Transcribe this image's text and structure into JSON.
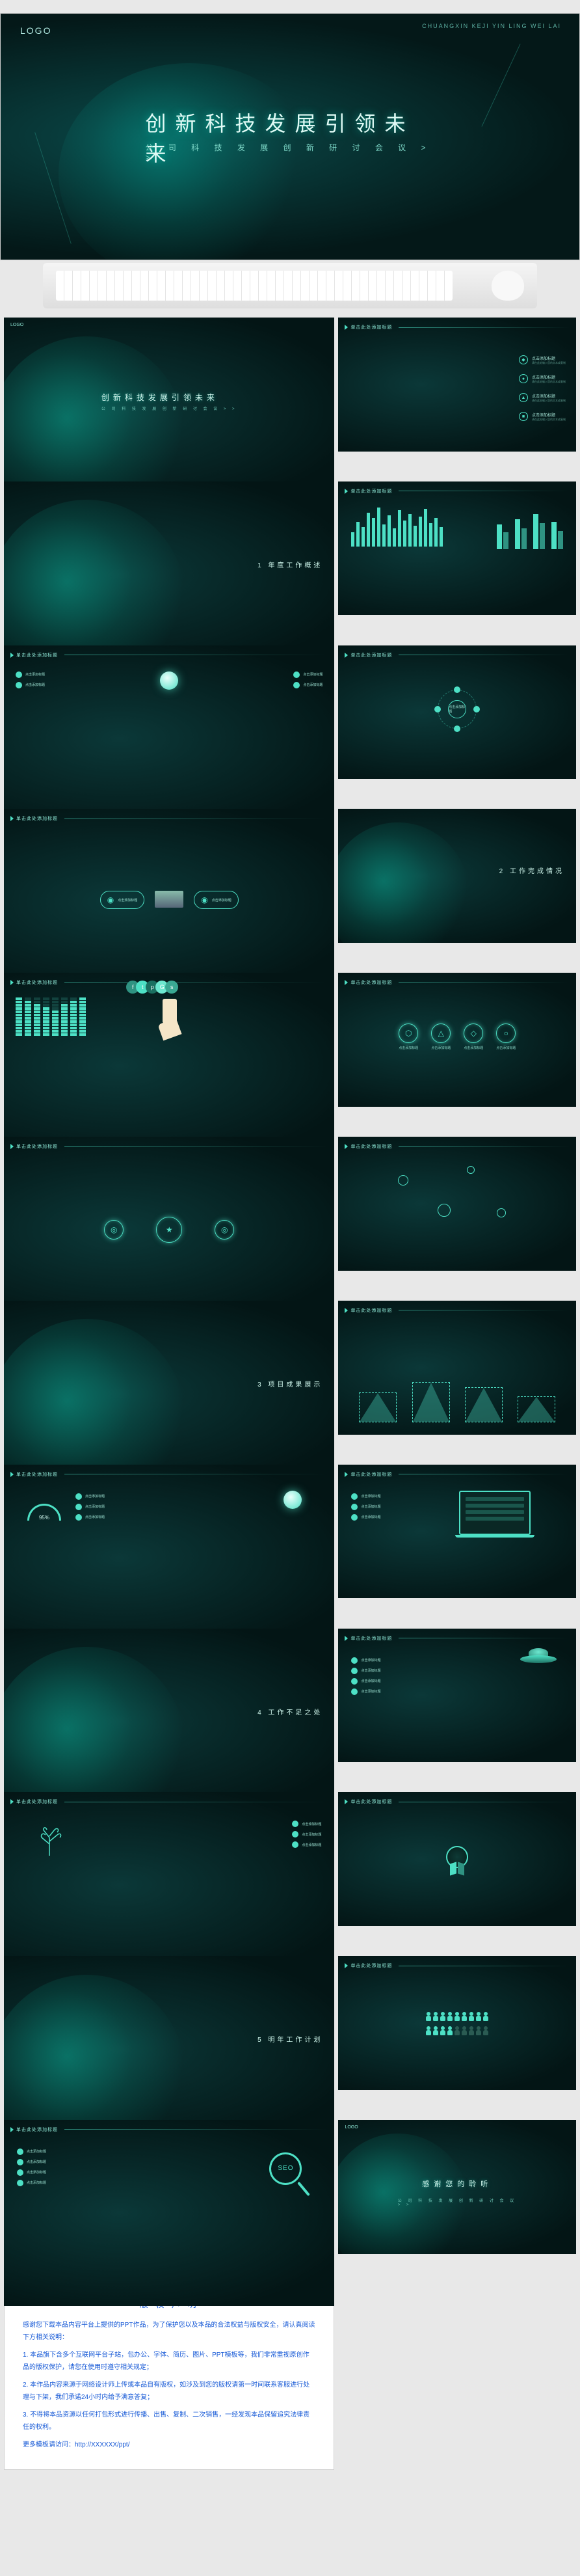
{
  "accent": "#4de0c5",
  "hero": {
    "logo": "LOGO",
    "title": "创新科技发展引领未来",
    "subtitle": "公 司 科 技 发 展 创 新 研 讨 会 议 > >",
    "pinyin": "CHUANGXIN KEJI YIN LING WEI LAI"
  },
  "header_label": "单击此处添加标题",
  "bullets": [
    {
      "icon": "◆",
      "title": "点击添加标题",
      "sub": "请在此处输入您的文本或复制"
    },
    {
      "icon": "●",
      "title": "点击添加标题",
      "sub": "请在此处输入您的文本或复制"
    },
    {
      "icon": "▲",
      "title": "点击添加标题",
      "sub": "请在此处输入您的文本或复制"
    },
    {
      "icon": "■",
      "title": "点击添加标题",
      "sub": "请在此处输入您的文本或复制"
    }
  ],
  "sections": {
    "s1": "1 年度工作概述",
    "s2": "2 工作完成情况",
    "s3": "3 项目成果展示",
    "s4": "4 工作不足之处",
    "s5": "5 明年工作计划"
  },
  "bars_left": {
    "values": [
      22,
      38,
      30,
      52,
      44,
      60,
      34,
      48,
      28,
      56,
      40,
      50,
      32,
      46,
      58,
      36,
      44,
      30
    ],
    "color": "#4de0c5",
    "max": 60
  },
  "bars_right": {
    "groups": [
      [
        38,
        26
      ],
      [
        46,
        32
      ],
      [
        54,
        40
      ],
      [
        42,
        28
      ]
    ],
    "colors": [
      "#4de0c5",
      "#2f9382"
    ],
    "labels": [
      "A",
      "B",
      "C",
      "D"
    ]
  },
  "eq": {
    "cols": [
      12,
      11,
      10,
      9,
      8,
      10,
      11,
      12
    ],
    "max": 12
  },
  "bubbles": [
    {
      "c": "#2f9382",
      "g": "f"
    },
    {
      "c": "#4de0c5",
      "g": "t"
    },
    {
      "c": "#1a6f60",
      "g": "p"
    },
    {
      "c": "#6de8d0",
      "g": "G"
    },
    {
      "c": "#3aa893",
      "g": "s"
    }
  ],
  "icons4": [
    {
      "g": "⬡",
      "t": "点击添加标题"
    },
    {
      "g": "△",
      "t": "点击添加标题"
    },
    {
      "g": "◇",
      "t": "点击添加标题"
    },
    {
      "g": "○",
      "t": "点击添加标题"
    }
  ],
  "orbit_label": "点击添加标题",
  "peaks": {
    "heights": [
      44,
      60,
      52,
      38
    ],
    "color_fill": "rgba(77,224,197,.35)",
    "dash": "#4de0c5"
  },
  "gauge_label": "95%",
  "people": {
    "total": 18,
    "active": 13,
    "color_on": "#4de0c5",
    "color_off": "#2a5b52"
  },
  "seo_label": "SEO",
  "thanks": {
    "title": "感谢您的聆听",
    "sub": "公 司 科 技 发 展 创 新 研 讨 会 议 > >"
  },
  "ufo_pills": [
    "点击添加标题",
    "点击添加标题",
    "点击添加标题",
    "点击添加标题"
  ],
  "tree_pills": [
    "点击添加标题",
    "点击添加标题",
    "点击添加标题"
  ],
  "mag_pills": [
    "点击添加标题",
    "点击添加标题",
    "点击添加标题",
    "点击添加标题"
  ],
  "laptop_pills": [
    "点击添加标题",
    "点击添加标题",
    "点击添加标题"
  ],
  "copyright": {
    "title": "版 权 声 明",
    "lines": [
      "感谢您下载本品内容平台上提供的PPT作品，为了保护您以及本品的合法权益与版权安全，请认真阅读下方相关说明：",
      "1. 本品旗下含多个互联网平台子站，包办公、字体、简历、图片、PPT模板等，我们非常重视原创作品的版权保护，请您在使用时遵守相关规定；",
      "2. 本作品内容来源于网络设计师上传或本品自有版权，如涉及到您的版权请第一时间联系客服进行处理与下架，我们承诺24小时内给予满意答复；",
      "3. 不得将本品资源以任何打包形式进行传播、出售、复制、二次销售，一经发现本品保留追究法律责任的权利。",
      "更多模板请访问：http://XXXXXX/ppt/"
    ]
  }
}
